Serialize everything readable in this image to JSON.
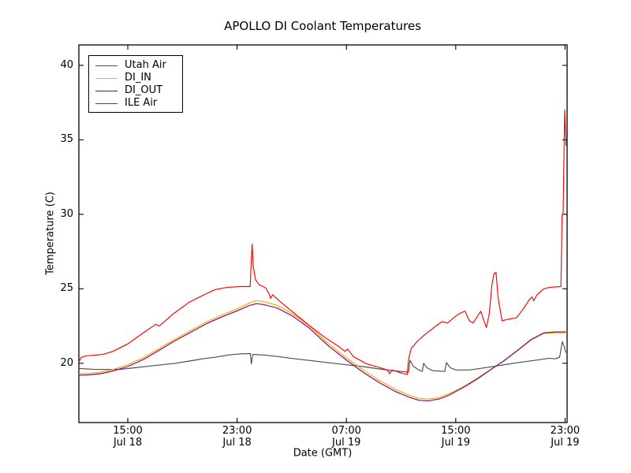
{
  "title": "APOLLO DI Coolant Temperatures",
  "axes": {
    "xlabel": "Date (GMT)",
    "ylabel": "Temperature (C)"
  },
  "chart_data": {
    "type": "line",
    "title": "APOLLO DI Coolant Temperatures",
    "xlabel": "Date (GMT)",
    "ylabel": "Temperature (C)",
    "x_unit": "hours since Jul 18 00:00 GMT",
    "xlim": [
      11.42,
      47.15
    ],
    "ylim": [
      16.02,
      41.37
    ],
    "grid": false,
    "legend_position": "upper left",
    "x_ticks": [
      {
        "value": 15,
        "line1": "15:00",
        "line2": "Jul 18"
      },
      {
        "value": 23,
        "line1": "23:00",
        "line2": "Jul 18"
      },
      {
        "value": 31,
        "line1": "07:00",
        "line2": "Jul 19"
      },
      {
        "value": 39,
        "line1": "15:00",
        "line2": "Jul 19"
      },
      {
        "value": 47,
        "line1": "23:00",
        "line2": "Jul 19"
      }
    ],
    "y_ticks": [
      {
        "value": 20,
        "label": "20"
      },
      {
        "value": 25,
        "label": "25"
      },
      {
        "value": 30,
        "label": "30"
      },
      {
        "value": 35,
        "label": "35"
      },
      {
        "value": 40,
        "label": "40"
      }
    ],
    "series": [
      {
        "name": "Utah Air",
        "color": "#4d4d4d",
        "points": [
          [
            11.42,
            19.65
          ],
          [
            12.5,
            19.6
          ],
          [
            13.5,
            19.58
          ],
          [
            14.5,
            19.6
          ],
          [
            15.5,
            19.7
          ],
          [
            16.5,
            19.8
          ],
          [
            17.5,
            19.9
          ],
          [
            18.5,
            20.0
          ],
          [
            19.5,
            20.15
          ],
          [
            20.5,
            20.3
          ],
          [
            21.5,
            20.42
          ],
          [
            22.3,
            20.55
          ],
          [
            23.2,
            20.63
          ],
          [
            23.97,
            20.65
          ],
          [
            24.04,
            19.95
          ],
          [
            24.15,
            20.6
          ],
          [
            25.0,
            20.55
          ],
          [
            26.0,
            20.45
          ],
          [
            27.2,
            20.3
          ],
          [
            28.4,
            20.18
          ],
          [
            29.6,
            20.05
          ],
          [
            31.0,
            19.9
          ],
          [
            32.2,
            19.78
          ],
          [
            33.4,
            19.62
          ],
          [
            34.6,
            19.48
          ],
          [
            35.55,
            19.4
          ],
          [
            35.65,
            20.2
          ],
          [
            35.9,
            19.8
          ],
          [
            36.3,
            19.55
          ],
          [
            36.55,
            19.45
          ],
          [
            36.65,
            20.0
          ],
          [
            36.9,
            19.7
          ],
          [
            37.3,
            19.5
          ],
          [
            38.2,
            19.45
          ],
          [
            38.32,
            20.05
          ],
          [
            38.6,
            19.7
          ],
          [
            39.0,
            19.55
          ],
          [
            40.0,
            19.55
          ],
          [
            41.0,
            19.68
          ],
          [
            42.0,
            19.82
          ],
          [
            43.0,
            19.97
          ],
          [
            44.0,
            20.1
          ],
          [
            45.0,
            20.22
          ],
          [
            45.8,
            20.33
          ],
          [
            46.3,
            20.3
          ],
          [
            46.6,
            20.4
          ],
          [
            46.8,
            21.45
          ],
          [
            46.95,
            21.1
          ],
          [
            47.05,
            20.7
          ]
        ]
      },
      {
        "name": "DI_IN",
        "color": "#ffa500",
        "points": [
          [
            11.42,
            19.3
          ],
          [
            12.2,
            19.32
          ],
          [
            13.0,
            19.4
          ],
          [
            13.8,
            19.55
          ],
          [
            15.0,
            19.9
          ],
          [
            16.2,
            20.4
          ],
          [
            17.3,
            21.0
          ],
          [
            18.4,
            21.6
          ],
          [
            19.6,
            22.2
          ],
          [
            20.8,
            22.8
          ],
          [
            21.9,
            23.25
          ],
          [
            23.0,
            23.65
          ],
          [
            23.9,
            24.05
          ],
          [
            24.4,
            24.2
          ],
          [
            24.9,
            24.15
          ],
          [
            25.9,
            23.9
          ],
          [
            27.1,
            23.3
          ],
          [
            28.3,
            22.5
          ],
          [
            29.7,
            21.3
          ],
          [
            31.1,
            20.3
          ],
          [
            32.3,
            19.5
          ],
          [
            33.4,
            18.85
          ],
          [
            34.6,
            18.25
          ],
          [
            35.6,
            17.85
          ],
          [
            36.3,
            17.65
          ],
          [
            37.0,
            17.6
          ],
          [
            37.8,
            17.7
          ],
          [
            38.5,
            17.95
          ],
          [
            39.6,
            18.45
          ],
          [
            40.5,
            18.95
          ],
          [
            41.6,
            19.6
          ],
          [
            42.5,
            20.15
          ],
          [
            43.4,
            20.75
          ],
          [
            44.5,
            21.55
          ],
          [
            45.45,
            22.0
          ],
          [
            46.3,
            22.05
          ],
          [
            47.07,
            22.05
          ]
        ]
      },
      {
        "name": "DI_OUT",
        "color": "#800080",
        "points": [
          [
            11.42,
            19.2
          ],
          [
            12.2,
            19.22
          ],
          [
            13.0,
            19.3
          ],
          [
            13.8,
            19.45
          ],
          [
            15.0,
            19.78
          ],
          [
            16.2,
            20.28
          ],
          [
            17.3,
            20.88
          ],
          [
            18.4,
            21.48
          ],
          [
            19.6,
            22.08
          ],
          [
            20.8,
            22.68
          ],
          [
            21.9,
            23.12
          ],
          [
            23.0,
            23.52
          ],
          [
            23.9,
            23.88
          ],
          [
            24.4,
            24.0
          ],
          [
            24.9,
            23.95
          ],
          [
            25.9,
            23.72
          ],
          [
            27.1,
            23.15
          ],
          [
            28.3,
            22.35
          ],
          [
            29.7,
            21.15
          ],
          [
            31.1,
            20.15
          ],
          [
            32.3,
            19.35
          ],
          [
            33.4,
            18.7
          ],
          [
            34.6,
            18.1
          ],
          [
            35.6,
            17.72
          ],
          [
            36.3,
            17.52
          ],
          [
            37.0,
            17.48
          ],
          [
            37.8,
            17.6
          ],
          [
            38.5,
            17.85
          ],
          [
            39.6,
            18.4
          ],
          [
            40.5,
            18.9
          ],
          [
            41.6,
            19.6
          ],
          [
            42.5,
            20.15
          ],
          [
            43.4,
            20.78
          ],
          [
            44.5,
            21.58
          ],
          [
            45.45,
            22.05
          ],
          [
            46.3,
            22.1
          ],
          [
            47.07,
            22.1
          ]
        ]
      },
      {
        "name": "ILE Air",
        "color": "#ff0000",
        "points": [
          [
            11.42,
            20.1
          ],
          [
            11.6,
            20.4
          ],
          [
            12.0,
            20.5
          ],
          [
            12.7,
            20.55
          ],
          [
            13.3,
            20.62
          ],
          [
            13.9,
            20.8
          ],
          [
            15.0,
            21.3
          ],
          [
            16.0,
            21.95
          ],
          [
            17.05,
            22.62
          ],
          [
            17.3,
            22.5
          ],
          [
            18.3,
            23.3
          ],
          [
            19.5,
            24.1
          ],
          [
            20.7,
            24.65
          ],
          [
            21.4,
            24.95
          ],
          [
            22.3,
            25.1
          ],
          [
            23.3,
            25.15
          ],
          [
            23.96,
            25.15
          ],
          [
            24.03,
            26.8
          ],
          [
            24.1,
            28.0
          ],
          [
            24.18,
            26.5
          ],
          [
            24.35,
            25.6
          ],
          [
            24.6,
            25.3
          ],
          [
            25.1,
            25.05
          ],
          [
            25.35,
            24.65
          ],
          [
            25.45,
            24.35
          ],
          [
            25.6,
            24.6
          ],
          [
            26.2,
            24.1
          ],
          [
            27.0,
            23.5
          ],
          [
            28.2,
            22.6
          ],
          [
            29.4,
            21.75
          ],
          [
            30.4,
            21.15
          ],
          [
            30.9,
            20.8
          ],
          [
            31.1,
            20.95
          ],
          [
            31.5,
            20.45
          ],
          [
            32.5,
            19.95
          ],
          [
            33.3,
            19.75
          ],
          [
            34.0,
            19.55
          ],
          [
            34.15,
            19.3
          ],
          [
            34.35,
            19.55
          ],
          [
            35.0,
            19.35
          ],
          [
            35.45,
            19.25
          ],
          [
            35.55,
            20.3
          ],
          [
            35.75,
            21.0
          ],
          [
            36.2,
            21.5
          ],
          [
            36.7,
            21.9
          ],
          [
            37.4,
            22.4
          ],
          [
            38.0,
            22.8
          ],
          [
            38.4,
            22.7
          ],
          [
            38.9,
            23.1
          ],
          [
            39.3,
            23.35
          ],
          [
            39.68,
            23.5
          ],
          [
            40.0,
            22.85
          ],
          [
            40.26,
            22.7
          ],
          [
            40.55,
            23.1
          ],
          [
            40.83,
            23.5
          ],
          [
            41.05,
            22.9
          ],
          [
            41.24,
            22.4
          ],
          [
            41.45,
            23.3
          ],
          [
            41.65,
            25.3
          ],
          [
            41.8,
            26.0
          ],
          [
            41.95,
            26.1
          ],
          [
            42.1,
            24.4
          ],
          [
            42.39,
            22.85
          ],
          [
            42.8,
            22.95
          ],
          [
            43.43,
            23.05
          ],
          [
            43.9,
            23.6
          ],
          [
            44.41,
            24.3
          ],
          [
            44.58,
            24.45
          ],
          [
            44.7,
            24.2
          ],
          [
            44.95,
            24.6
          ],
          [
            45.45,
            25.0
          ],
          [
            45.9,
            25.1
          ],
          [
            46.7,
            25.15
          ],
          [
            46.78,
            29.9
          ],
          [
            46.86,
            30.15
          ],
          [
            46.97,
            37.0
          ],
          [
            47.07,
            34.6
          ]
        ]
      }
    ]
  }
}
